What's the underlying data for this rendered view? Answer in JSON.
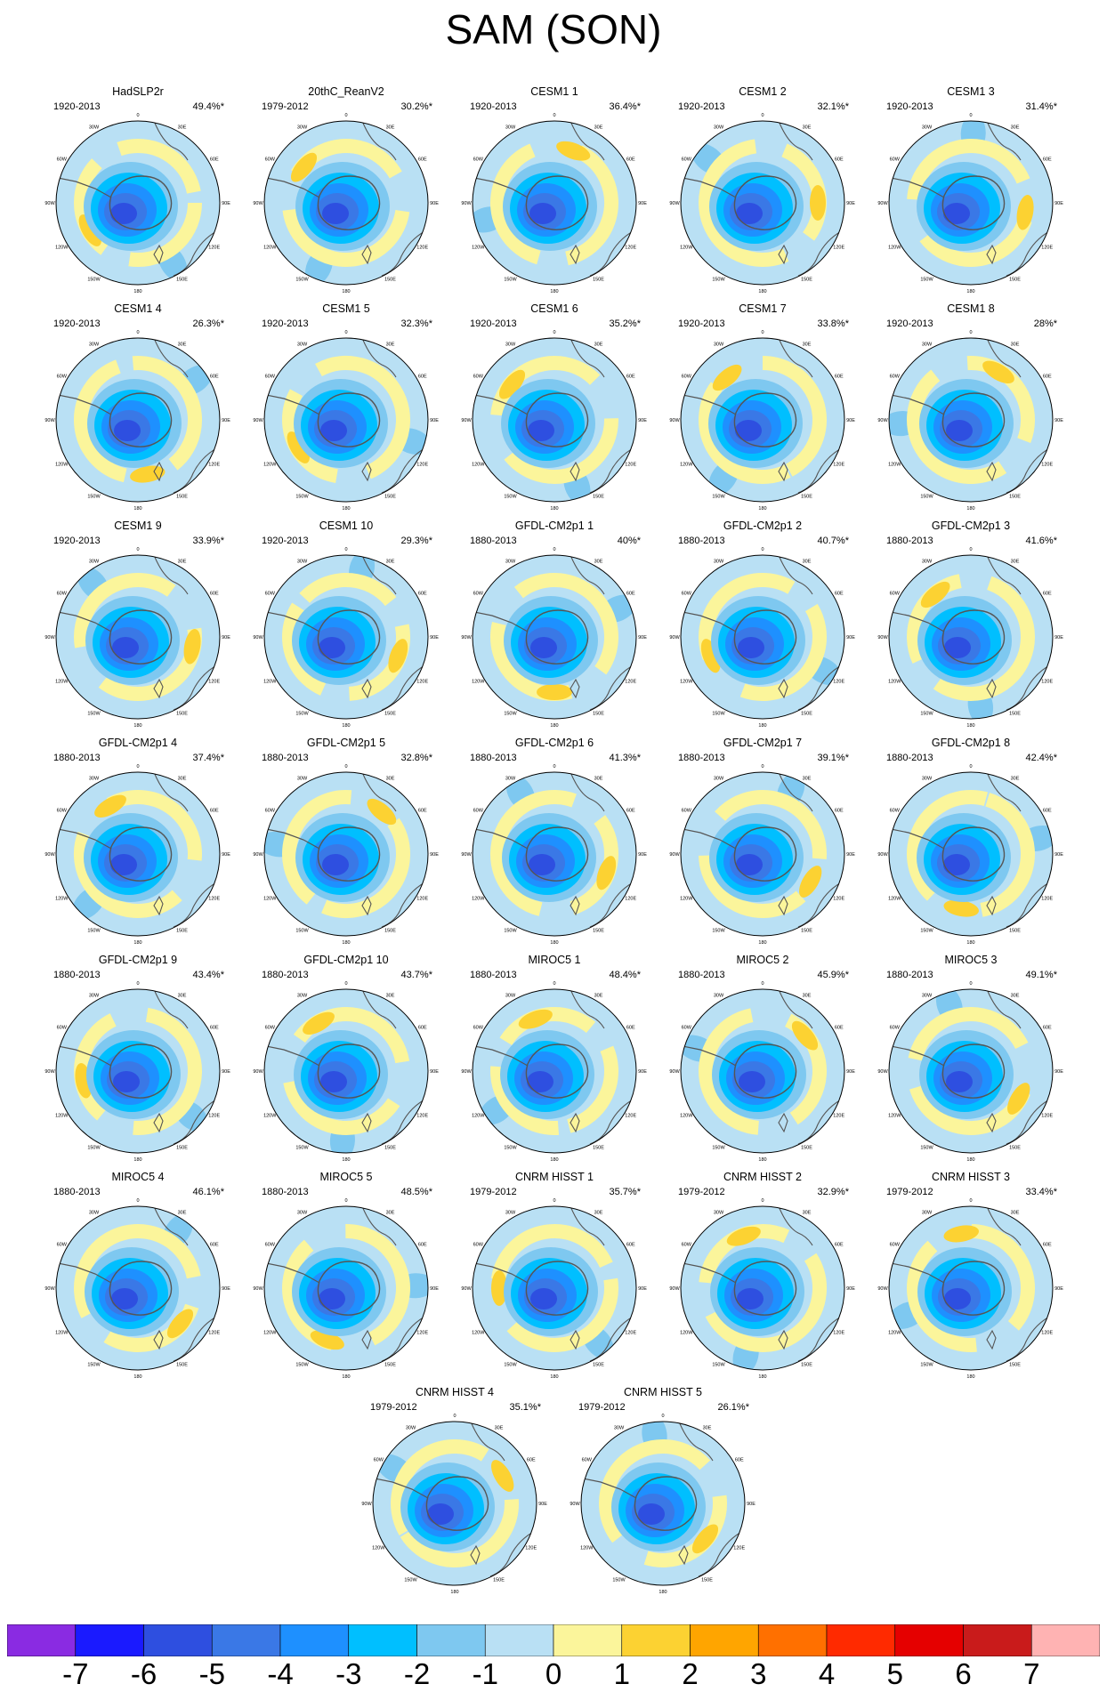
{
  "title": "SAM (SON)",
  "axis_labels": {
    "lon_0": "0",
    "lon_30w": "30W",
    "lon_30e": "30E",
    "lon_60w": "60W",
    "lon_60e": "60E",
    "lon_90w": "90W",
    "lon_90e": "90E",
    "lon_120w": "120W",
    "lon_120e": "120E",
    "lon_150w": "150W",
    "lon_150e": "150E",
    "lon_180": "180"
  },
  "panels": [
    {
      "name": "HadSLP2r",
      "period": "1920-2013",
      "pct": "49.4%*"
    },
    {
      "name": "20thC_ReanV2",
      "period": "1979-2012",
      "pct": "30.2%*"
    },
    {
      "name": "CESM1 1",
      "period": "1920-2013",
      "pct": "36.4%*"
    },
    {
      "name": "CESM1 2",
      "period": "1920-2013",
      "pct": "32.1%*"
    },
    {
      "name": "CESM1 3",
      "period": "1920-2013",
      "pct": "31.4%*"
    },
    {
      "name": "CESM1 4",
      "period": "1920-2013",
      "pct": "26.3%*"
    },
    {
      "name": "CESM1 5",
      "period": "1920-2013",
      "pct": "32.3%*"
    },
    {
      "name": "CESM1 6",
      "period": "1920-2013",
      "pct": "35.2%*"
    },
    {
      "name": "CESM1 7",
      "period": "1920-2013",
      "pct": "33.8%*"
    },
    {
      "name": "CESM1 8",
      "period": "1920-2013",
      "pct": "28%*"
    },
    {
      "name": "CESM1 9",
      "period": "1920-2013",
      "pct": "33.9%*"
    },
    {
      "name": "CESM1 10",
      "period": "1920-2013",
      "pct": "29.3%*"
    },
    {
      "name": "GFDL-CM2p1 1",
      "period": "1880-2013",
      "pct": "40%*"
    },
    {
      "name": "GFDL-CM2p1 2",
      "period": "1880-2013",
      "pct": "40.7%*"
    },
    {
      "name": "GFDL-CM2p1 3",
      "period": "1880-2013",
      "pct": "41.6%*"
    },
    {
      "name": "GFDL-CM2p1 4",
      "period": "1880-2013",
      "pct": "37.4%*"
    },
    {
      "name": "GFDL-CM2p1 5",
      "period": "1880-2013",
      "pct": "32.8%*"
    },
    {
      "name": "GFDL-CM2p1 6",
      "period": "1880-2013",
      "pct": "41.3%*"
    },
    {
      "name": "GFDL-CM2p1 7",
      "period": "1880-2013",
      "pct": "39.1%*"
    },
    {
      "name": "GFDL-CM2p1 8",
      "period": "1880-2013",
      "pct": "42.4%*"
    },
    {
      "name": "GFDL-CM2p1 9",
      "period": "1880-2013",
      "pct": "43.4%*"
    },
    {
      "name": "GFDL-CM2p1 10",
      "period": "1880-2013",
      "pct": "43.7%*"
    },
    {
      "name": "MIROC5 1",
      "period": "1880-2013",
      "pct": "48.4%*"
    },
    {
      "name": "MIROC5 2",
      "period": "1880-2013",
      "pct": "45.9%*"
    },
    {
      "name": "MIROC5 3",
      "period": "1880-2013",
      "pct": "49.1%*"
    },
    {
      "name": "MIROC5 4",
      "period": "1880-2013",
      "pct": "46.1%*"
    },
    {
      "name": "MIROC5 5",
      "period": "1880-2013",
      "pct": "48.5%*"
    },
    {
      "name": "CNRM HISST 1",
      "period": "1979-2012",
      "pct": "35.7%*"
    },
    {
      "name": "CNRM HISST 2",
      "period": "1979-2012",
      "pct": "32.9%*"
    },
    {
      "name": "CNRM HISST 3",
      "period": "1979-2012",
      "pct": "33.4%*"
    },
    {
      "name": "CNRM HISST 4",
      "period": "1979-2012",
      "pct": "35.1%*"
    },
    {
      "name": "CNRM HISST 5",
      "period": "1979-2012",
      "pct": "26.1%*"
    }
  ],
  "colorbar": {
    "labels": [
      "-7",
      "-6",
      "-5",
      "-4",
      "-3",
      "-2",
      "-1",
      "0",
      "1",
      "2",
      "3",
      "4",
      "5",
      "6",
      "7"
    ],
    "colors": [
      "#8a2be2",
      "#1a1aff",
      "#2e4fe0",
      "#3a78e6",
      "#1e90ff",
      "#00bfff",
      "#7ec8f0",
      "#b9e0f4",
      "#fbf59b",
      "#fcd232",
      "#ffa500",
      "#ff7000",
      "#ff2a00",
      "#e50000",
      "#c91b1b",
      "#ffb3b3"
    ]
  }
}
